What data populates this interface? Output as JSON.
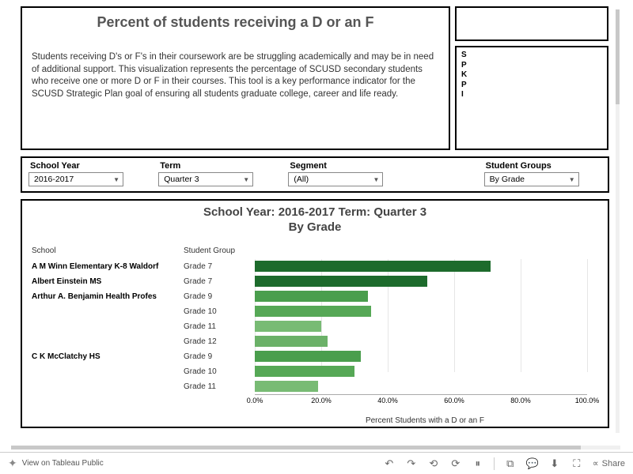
{
  "header": {
    "title": "Percent of students receiving a D or an F",
    "description": "Students receiving D's or F's in their coursework are be struggling academically and may be in need of additional support. This visualization represents the percentage of SCUSD secondary students who receive one or more D or F in their courses. This tool is a key performance indicator for the SCUSD Strategic Plan goal of ensuring all students graduate college, career and life ready."
  },
  "sideText": "S\nP\nK\nP\nI",
  "filters": {
    "schoolYear": {
      "label": "School Year",
      "value": "2016-2017"
    },
    "term": {
      "label": "Term",
      "value": "Quarter 3"
    },
    "segment": {
      "label": "Segment",
      "value": "(All)"
    },
    "studentGroups": {
      "label": "Student Groups",
      "value": "By Grade"
    }
  },
  "chart": {
    "title_line1": "School Year: 2016-2017  Term:  Quarter 3",
    "title_line2": "By Grade",
    "col_school": "School",
    "col_group": "Student Group",
    "x_axis_label": "Percent Students with a D or an F",
    "x_ticks": [
      "0.0%",
      "20.0%",
      "40.0%",
      "60.0%",
      "80.0%",
      "100.0%"
    ],
    "x_max": 100,
    "colors": {
      "grade7": "#1d6b2c",
      "grade8": "#2f7d3a",
      "grade9": "#4a9e4d",
      "grade10": "#56a856",
      "grade11": "#78bb74",
      "grade12": "#6bb168"
    },
    "rows": [
      {
        "school": "A M Winn Elementary K-8 Waldorf",
        "group": "Grade 7",
        "value": 71,
        "colorKey": "grade7"
      },
      {
        "school": "Albert Einstein MS",
        "group": "Grade 7",
        "value": 52,
        "colorKey": "grade7"
      },
      {
        "school": "Arthur A. Benjamin Health Profes",
        "group": "Grade 9",
        "value": 34,
        "colorKey": "grade9"
      },
      {
        "school": "",
        "group": "Grade 10",
        "value": 35,
        "colorKey": "grade10"
      },
      {
        "school": "",
        "group": "Grade 11",
        "value": 20,
        "colorKey": "grade11"
      },
      {
        "school": "",
        "group": "Grade 12",
        "value": 22,
        "colorKey": "grade12"
      },
      {
        "school": "C K McClatchy HS",
        "group": "Grade 9",
        "value": 32,
        "colorKey": "grade9"
      },
      {
        "school": "",
        "group": "Grade 10",
        "value": 30,
        "colorKey": "grade10"
      },
      {
        "school": "",
        "group": "Grade 11",
        "value": 19,
        "colorKey": "grade11"
      }
    ]
  },
  "footer": {
    "tableau": "View on Tableau Public",
    "share": "Share"
  }
}
